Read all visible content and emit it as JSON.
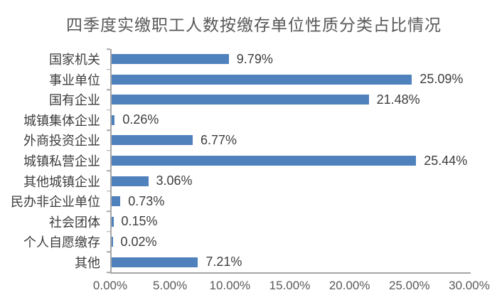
{
  "chart_data": {
    "type": "bar",
    "orientation": "horizontal",
    "title": "四季度实缴职工人数按缴存单位性质分类占比情况",
    "categories": [
      "国家机关",
      "事业单位",
      "国有企业",
      "城镇集体企业",
      "外商投资企业",
      "城镇私营企业",
      "其他城镇企业",
      "民办非企业单位",
      "社会团体",
      "个人自愿缴存",
      "其他"
    ],
    "values": [
      9.79,
      25.09,
      21.48,
      0.26,
      6.77,
      25.44,
      3.06,
      0.73,
      0.15,
      0.02,
      7.21
    ],
    "value_labels": [
      "9.79%",
      "25.09%",
      "21.48%",
      "0.26%",
      "6.77%",
      "25.44%",
      "3.06%",
      "0.73%",
      "0.15%",
      "0.02%",
      "7.21%"
    ],
    "xlabel": "",
    "ylabel": "",
    "xlim": [
      0,
      30
    ],
    "x_tick_labels": [
      "0.00%",
      "5.00%",
      "10.00%",
      "15.00%",
      "20.00%",
      "25.00%",
      "30.00%"
    ],
    "grid": false,
    "legend": false,
    "bar_color": "#4f81bd",
    "axis_color": "#a6a6a6",
    "title_color": "#595959",
    "label_color": "#3d3d3d",
    "tick_label_color": "#595959"
  }
}
